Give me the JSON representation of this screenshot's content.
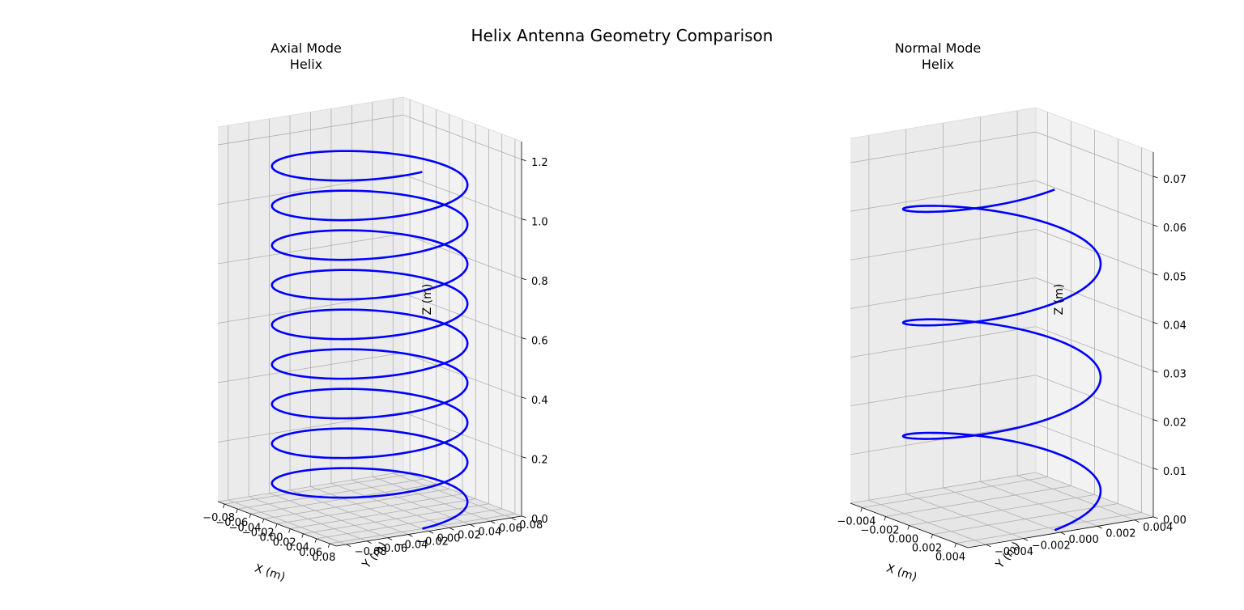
{
  "figure": {
    "suptitle": "Helix Antenna Geometry Comparison",
    "curve_color": "#0000ff",
    "pane_colors": [
      "#f2f2f2",
      "#ebebeb",
      "#e6e6e6"
    ],
    "grid_color": "#b0b0b0"
  },
  "chart_data": [
    {
      "type": "line",
      "projection": "3d",
      "title": "Axial Mode\nHelix",
      "xlabel": "X (m)",
      "ylabel": "Y (m)",
      "zlabel": "Z (m)",
      "xlim": [
        -0.09,
        0.09
      ],
      "ylim": [
        -0.09,
        0.09
      ],
      "zlim": [
        0,
        1.26
      ],
      "xticks": [
        "−0.08",
        "−0.06",
        "−0.04",
        "−0.02",
        "0.00",
        "0.02",
        "0.04",
        "0.06",
        "0.08"
      ],
      "yticks": [
        "−0.08",
        "−0.06",
        "−0.04",
        "−0.02",
        "0.00",
        "0.02",
        "0.04",
        "0.06",
        "0.08"
      ],
      "zticks": [
        "0.0",
        "0.2",
        "0.4",
        "0.6",
        "0.8",
        "1.0",
        "1.2"
      ],
      "grid": true,
      "series": [
        {
          "kind": "helix",
          "radius": 0.08,
          "turns": 9,
          "z_start": 0,
          "z_end": 1.2,
          "start_angle_deg": 0
        }
      ]
    },
    {
      "type": "line",
      "projection": "3d",
      "title": "Normal Mode\nHelix",
      "xlabel": "X (m)",
      "ylabel": "Y (m)",
      "zlabel": "Z (m)",
      "xlim": [
        -0.005,
        0.005
      ],
      "ylim": [
        -0.005,
        0.005
      ],
      "zlim": [
        0,
        0.075
      ],
      "xticks": [
        "−0.004",
        "−0.002",
        "0.000",
        "0.002",
        "0.004"
      ],
      "yticks": [
        "−0.004",
        "−0.002",
        "0.000",
        "0.002",
        "0.004"
      ],
      "zticks": [
        "0.00",
        "0.01",
        "0.02",
        "0.03",
        "0.04",
        "0.05",
        "0.06",
        "0.07"
      ],
      "grid": true,
      "series": [
        {
          "kind": "helix",
          "radius": 0.0045,
          "turns": 3,
          "z_start": 0,
          "z_end": 0.07,
          "start_angle_deg": 0
        }
      ]
    }
  ]
}
